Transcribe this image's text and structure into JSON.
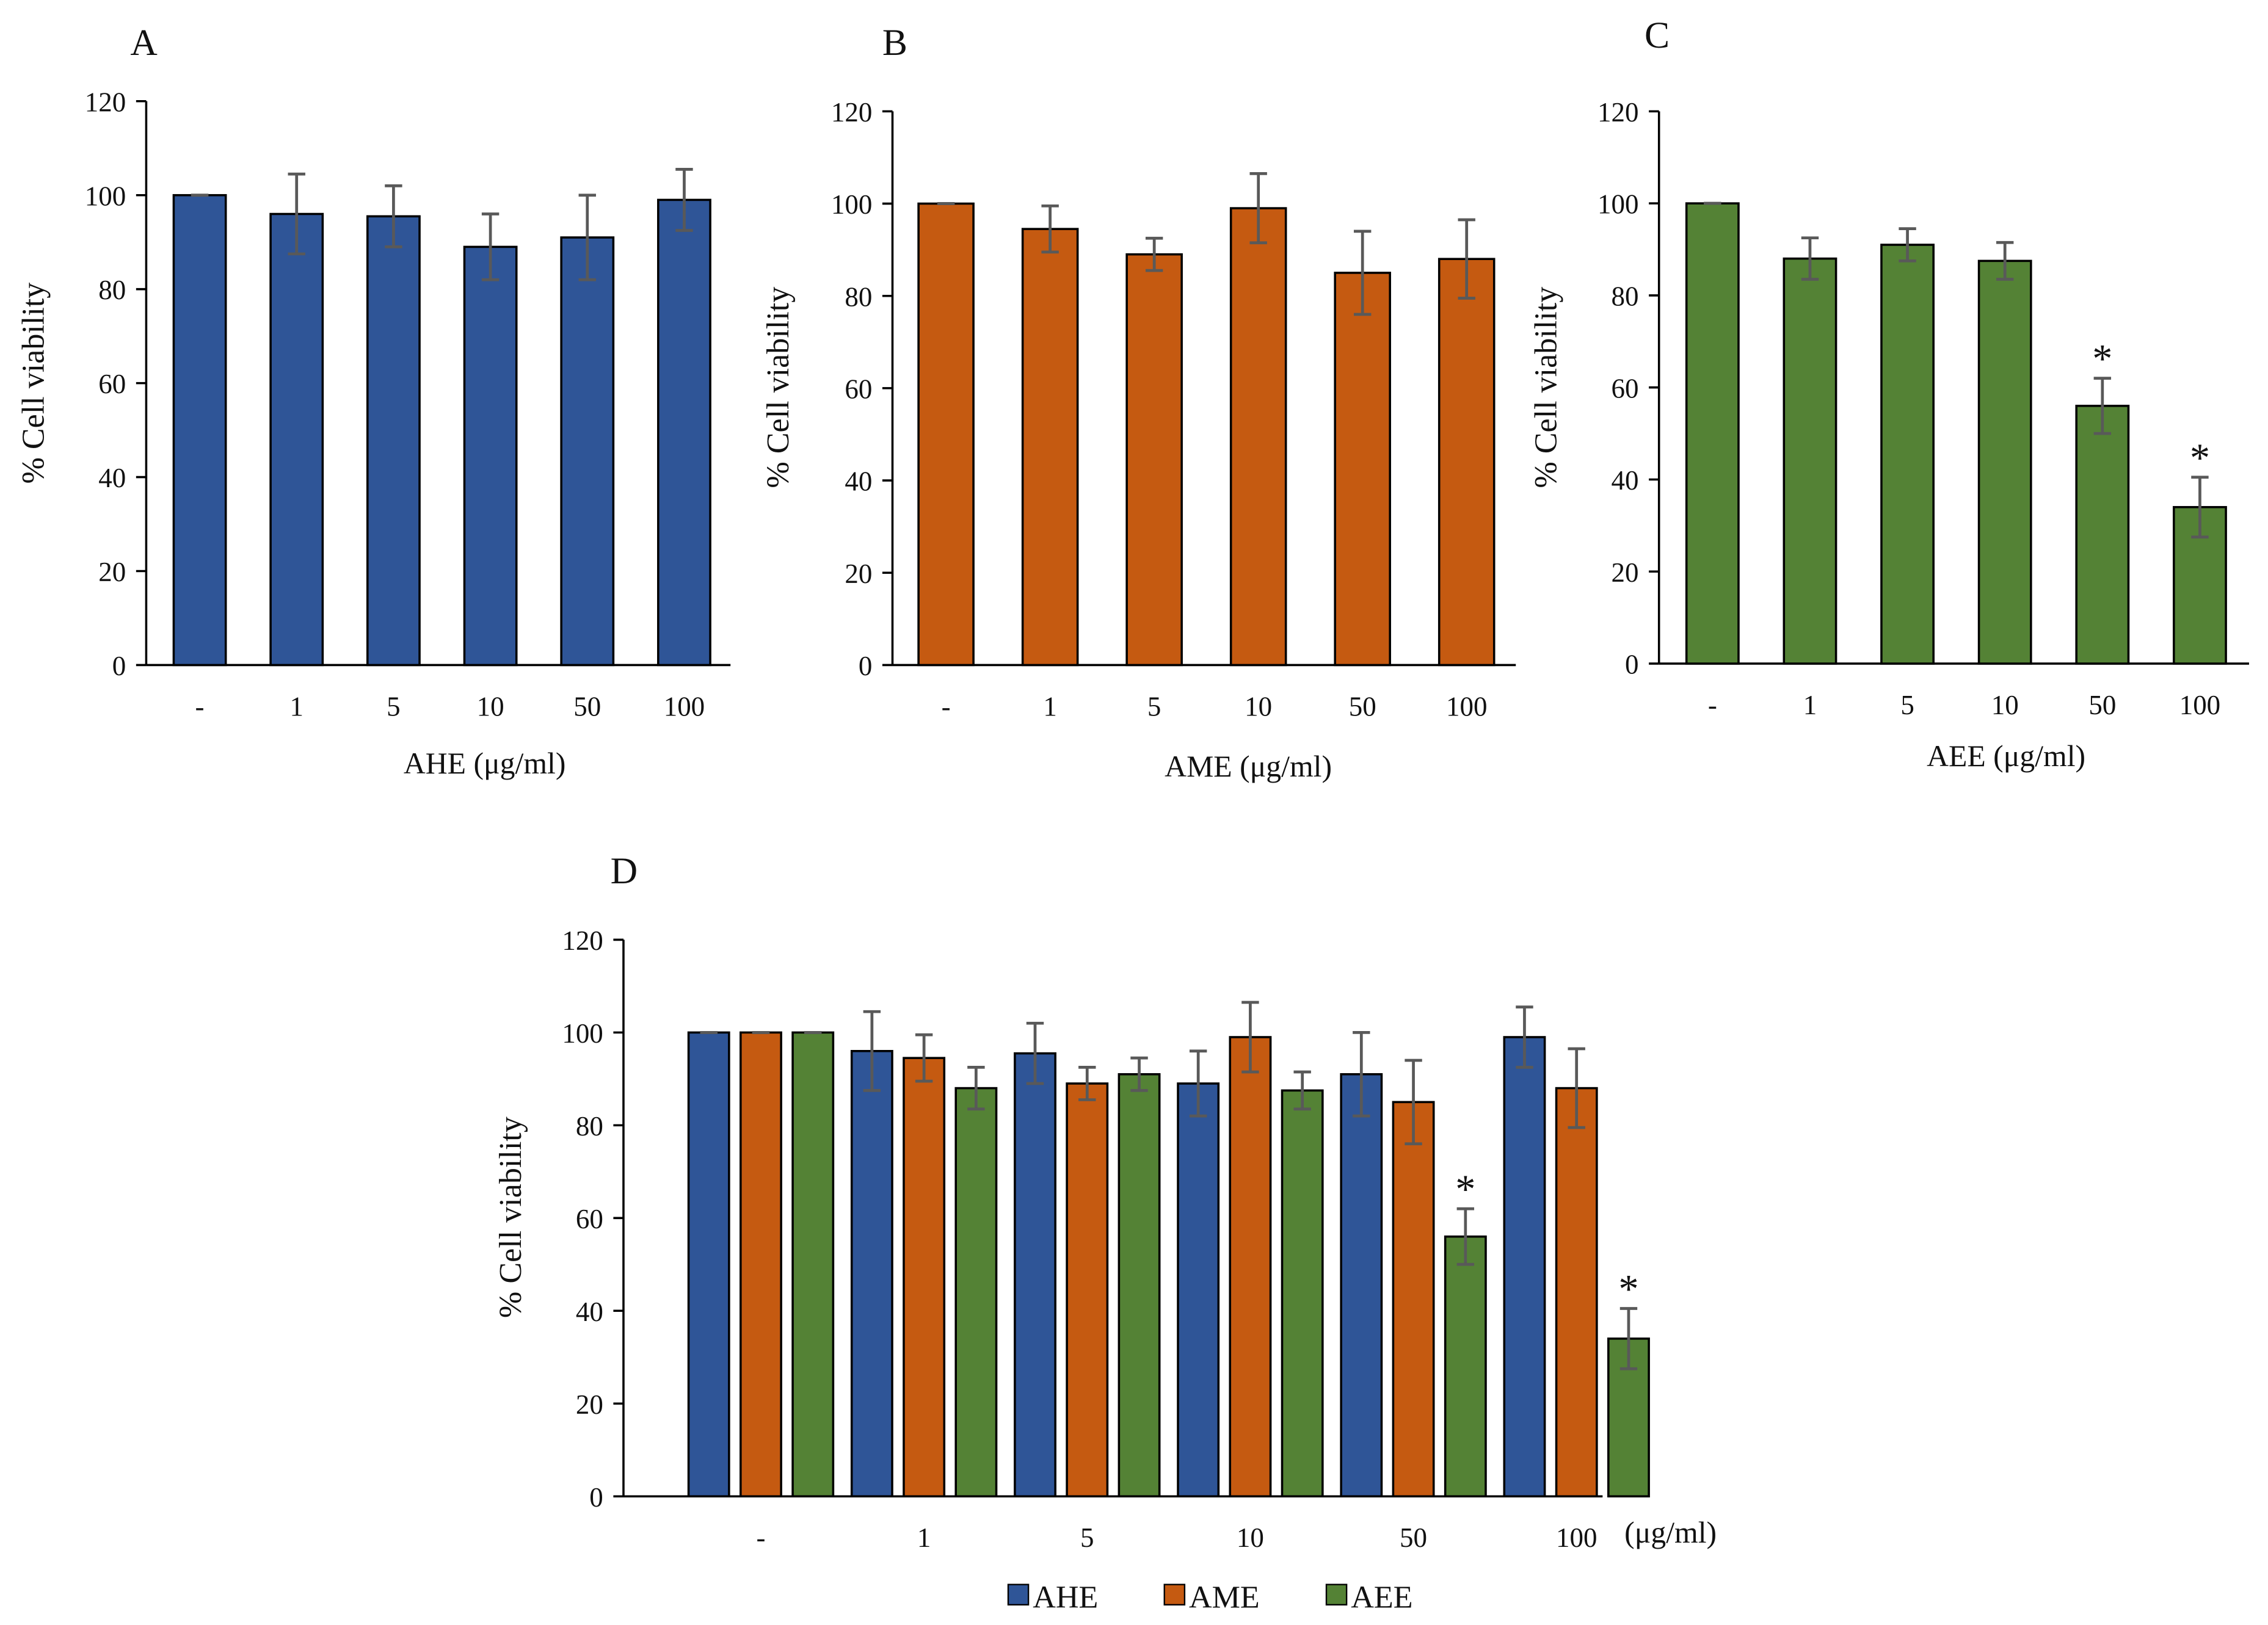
{
  "chart_data": [
    {
      "panel": "A",
      "type": "bar",
      "categories": [
        "-",
        "1",
        "5",
        "10",
        "50",
        "100"
      ],
      "series": [
        {
          "name": "AHE",
          "color": "#2F5597",
          "values": [
            100,
            96,
            95.5,
            89,
            91,
            99
          ],
          "errors": [
            0,
            8.5,
            6.5,
            7,
            9,
            6.5
          ]
        }
      ],
      "xlabel": "AHE (μg/ml)",
      "ylabel": "% Cell viability",
      "ylim": [
        0,
        120
      ],
      "yticks": [
        0,
        20,
        40,
        60,
        80,
        100,
        120
      ],
      "annotations": []
    },
    {
      "panel": "B",
      "type": "bar",
      "categories": [
        "-",
        "1",
        "5",
        "10",
        "50",
        "100"
      ],
      "series": [
        {
          "name": "AME",
          "color": "#C55A11",
          "values": [
            100,
            94.5,
            89,
            99,
            85,
            88
          ],
          "errors": [
            0,
            5,
            3.5,
            7.5,
            9,
            8.5
          ]
        }
      ],
      "xlabel": "AME (μg/ml)",
      "ylabel": "% Cell viability",
      "ylim": [
        0,
        120
      ],
      "yticks": [
        0,
        20,
        40,
        60,
        80,
        100,
        120
      ],
      "annotations": []
    },
    {
      "panel": "C",
      "type": "bar",
      "categories": [
        "-",
        "1",
        "5",
        "10",
        "50",
        "100"
      ],
      "series": [
        {
          "name": "AEE",
          "color": "#548235",
          "values": [
            100,
            88,
            91,
            87.5,
            56,
            34
          ],
          "errors": [
            0,
            4.5,
            3.5,
            4,
            6,
            6.5
          ]
        }
      ],
      "xlabel": "AEE (μg/ml)",
      "ylabel": "% Cell viability",
      "ylim": [
        0,
        120
      ],
      "yticks": [
        0,
        20,
        40,
        60,
        80,
        100,
        120
      ],
      "annotations": [
        {
          "series": 0,
          "category": "50",
          "text": "*"
        },
        {
          "series": 0,
          "category": "100",
          "text": "*"
        }
      ]
    },
    {
      "panel": "D",
      "type": "bar",
      "categories": [
        "-",
        "1",
        "5",
        "10",
        "50",
        "100"
      ],
      "series": [
        {
          "name": "AHE",
          "color": "#2F5597",
          "values": [
            100,
            96,
            95.5,
            89,
            91,
            99
          ],
          "errors": [
            0,
            8.5,
            6.5,
            7,
            9,
            6.5
          ]
        },
        {
          "name": "AME",
          "color": "#C55A11",
          "values": [
            100,
            94.5,
            89,
            99,
            85,
            88
          ],
          "errors": [
            0,
            5,
            3.5,
            7.5,
            9,
            8.5
          ]
        },
        {
          "name": "AEE",
          "color": "#548235",
          "values": [
            100,
            88,
            91,
            87.5,
            56,
            34
          ],
          "errors": [
            0,
            4.5,
            3.5,
            4,
            6,
            6.5
          ]
        }
      ],
      "xlabel": "(μg/ml)",
      "ylabel": "% Cell viability",
      "ylim": [
        0,
        120
      ],
      "yticks": [
        0,
        20,
        40,
        60,
        80,
        100,
        120
      ],
      "legend": {
        "placement": "bottom",
        "entries": [
          "AHE",
          "AME",
          "AEE"
        ]
      },
      "annotations": [
        {
          "series": 2,
          "category": "50",
          "text": "*"
        },
        {
          "series": 2,
          "category": "100",
          "text": "*"
        }
      ]
    }
  ]
}
